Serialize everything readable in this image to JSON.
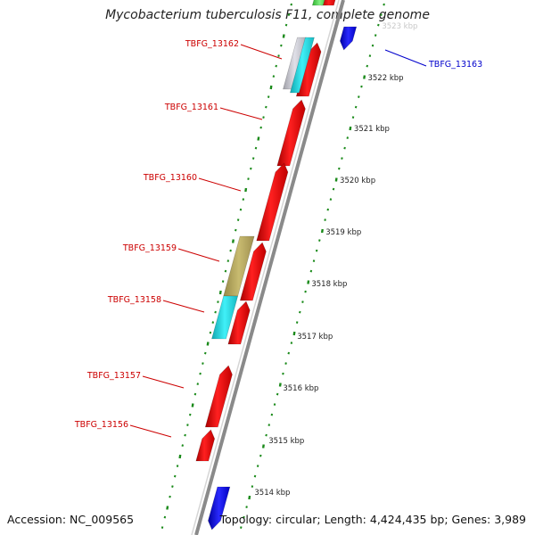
{
  "title": "Mycobacterium tuberculosis F11, complete genome",
  "footer": {
    "accession": "Accession: NC_009565",
    "summary": "Topology: circular; Length: 4,424,435 bp; Genes: 3,989"
  },
  "colors": {
    "forward_gene": "#ee1111",
    "reverse_gene": "#1a1aee",
    "backbone": "#888888",
    "tick": "#1a8a1a",
    "label_red": "#cc0000",
    "label_blue": "#0000cc",
    "cyan": "#22d0d8",
    "olive": "#b5a860",
    "silver": "#c0c0c8"
  },
  "scale_labels": [
    "3523 kbp",
    "3522 kbp",
    "3521 kbp",
    "3520 kbp",
    "3519 kbp",
    "3518 kbp",
    "3517 kbp",
    "3516 kbp",
    "3515 kbp",
    "3514 kbp"
  ],
  "gene_labels": [
    {
      "name": "TBFG_13162",
      "color": "red"
    },
    {
      "name": "TBFG_13161",
      "color": "red"
    },
    {
      "name": "TBFG_13160",
      "color": "red"
    },
    {
      "name": "TBFG_13159",
      "color": "red"
    },
    {
      "name": "TBFG_13158",
      "color": "red"
    },
    {
      "name": "TBFG_13157",
      "color": "red"
    },
    {
      "name": "TBFG_13156",
      "color": "red"
    },
    {
      "name": "TBFG_13163",
      "color": "blue"
    }
  ]
}
